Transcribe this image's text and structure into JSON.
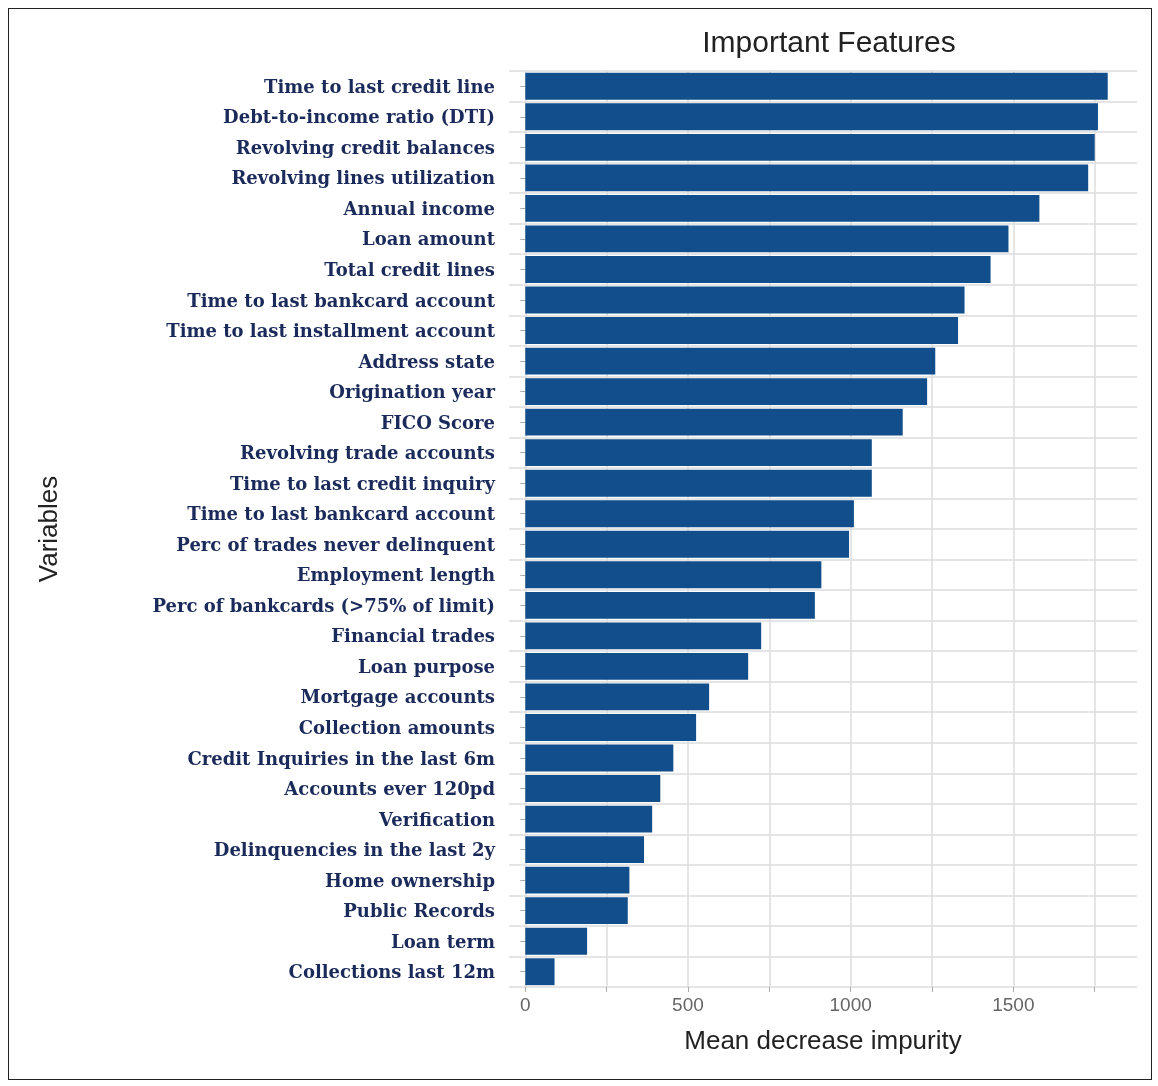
{
  "chart_data": {
    "type": "bar",
    "orientation": "horizontal",
    "title": "Important Features",
    "xlabel": "Mean decrease impurity",
    "ylabel": "Variables",
    "categories": [
      "Time to last credit line",
      "Debt-to-income ratio (DTI)",
      "Revolving credit balances",
      "Revolving lines utilization",
      "Annual income",
      "Loan amount",
      "Total credit lines",
      "Time to last bankcard account",
      "Time to last installment account",
      "Address state",
      "Origination year",
      "FICO Score",
      "Revolving trade accounts",
      "Time to last credit inquiry",
      "Time to last bankcard account",
      "Perc of trades never delinquent",
      "Employment length",
      "Perc of bankcards (>75% of limit)",
      "Financial trades",
      "Loan purpose",
      "Mortgage accounts",
      "Collection amounts",
      "Credit Inquiries in the last 6m",
      "Accounts ever 120pd",
      "Verification",
      "Delinquencies in the last 2y",
      "Home ownership",
      "Public Records",
      "Loan term",
      "Collections last 12m"
    ],
    "values": [
      1790,
      1760,
      1750,
      1730,
      1580,
      1485,
      1430,
      1350,
      1330,
      1260,
      1235,
      1160,
      1065,
      1065,
      1010,
      995,
      910,
      890,
      725,
      685,
      565,
      525,
      455,
      415,
      390,
      365,
      320,
      315,
      190,
      90
    ],
    "color": "#114e8b",
    "xlim": [
      -50,
      1880
    ],
    "xticks": [
      0,
      {
        "value": 250,
        "label": null
      },
      500,
      {
        "value": 750,
        "label": null
      },
      1000,
      {
        "value": 1250,
        "label": null
      },
      1500,
      {
        "value": 1750,
        "label": null
      }
    ],
    "grid": true
  }
}
